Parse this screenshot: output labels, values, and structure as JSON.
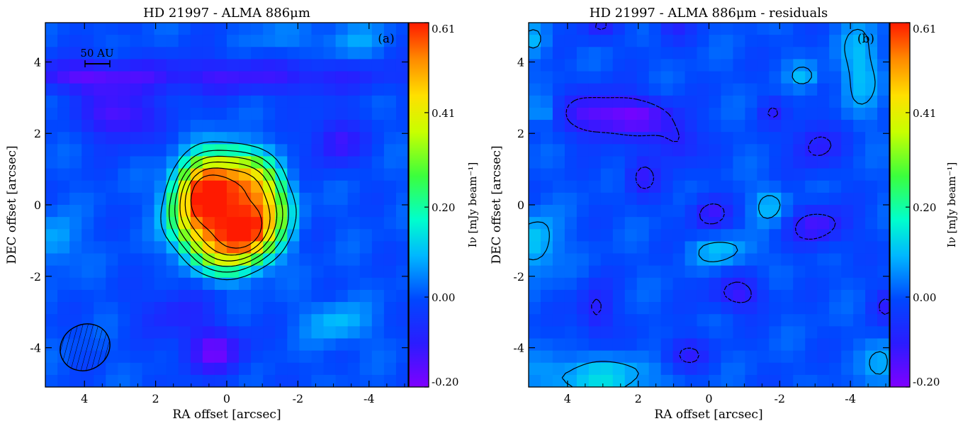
{
  "chart_data": [
    {
      "type": "heatmap",
      "panel_label": "(a)",
      "title": "HD 21997 - ALMA 886μm",
      "xlabel": "RA offset [arcsec]",
      "ylabel": "DEC offset [arcsec]",
      "xlim": [
        5.1,
        -5.1
      ],
      "ylim": [
        -5.1,
        5.1
      ],
      "x_ticks": [
        4,
        2,
        0,
        -2,
        -4
      ],
      "x_tick_labels": [
        "4",
        "2",
        "0",
        "-2",
        "-4"
      ],
      "y_ticks": [
        -4,
        -2,
        0,
        2,
        4
      ],
      "y_tick_labels": [
        "-4",
        "-2",
        "0",
        "2",
        "4"
      ],
      "colorbar": {
        "label": "Iν [mJy beam⁻¹]",
        "range": [
          -0.2,
          0.61
        ],
        "ticks": [
          -0.2,
          0.0,
          0.2,
          0.41,
          0.61
        ],
        "tick_labels": [
          "-0.20",
          "0.00",
          "0.20",
          "0.41",
          "0.61"
        ]
      },
      "scale_bar_label": "50 AU",
      "beam": {
        "center_x": 4.0,
        "center_y": -4.1,
        "major_arcsec": 1.5,
        "minor_arcsec": 1.3
      },
      "components": [
        {
          "type": "ring",
          "center_x": -0.05,
          "center_y": -0.15,
          "radius_x": 1.55,
          "radius_y": 1.6,
          "width": 1.05,
          "peak": 0.58
        },
        {
          "type": "blob",
          "center_x": 0.75,
          "center_y": 0.5,
          "sigma_x": 0.45,
          "sigma_y": 0.55,
          "peak": 0.12
        },
        {
          "type": "blob",
          "center_x": -0.55,
          "center_y": -0.8,
          "sigma_x": 0.4,
          "sigma_y": 0.45,
          "peak": 0.12
        },
        {
          "type": "blob",
          "center_x": 3.0,
          "center_y": 2.5,
          "sigma_x": 0.7,
          "sigma_y": 0.5,
          "peak": -0.16
        },
        {
          "type": "blob",
          "center_x": -3.1,
          "center_y": 1.8,
          "sigma_x": 0.5,
          "sigma_y": 0.5,
          "peak": -0.13
        },
        {
          "type": "blob",
          "center_x": 0.35,
          "center_y": -4.1,
          "sigma_x": 0.6,
          "sigma_y": 0.45,
          "peak": -0.17
        },
        {
          "type": "blob",
          "center_x": 1.5,
          "center_y": -3.0,
          "sigma_x": 0.7,
          "sigma_y": 0.5,
          "peak": -0.08
        },
        {
          "type": "blob",
          "center_x": -0.1,
          "center_y": 3.6,
          "sigma_x": 3.5,
          "sigma_y": 0.35,
          "peak": -0.12
        },
        {
          "type": "blob",
          "center_x": 4.2,
          "center_y": 3.6,
          "sigma_x": 1.0,
          "sigma_y": 0.3,
          "peak": -0.1
        },
        {
          "type": "blob",
          "center_x": -3.1,
          "center_y": -3.3,
          "sigma_x": 0.6,
          "sigma_y": 0.4,
          "peak": 0.1
        },
        {
          "type": "blob",
          "center_x": 4.8,
          "center_y": -1.0,
          "sigma_x": 0.4,
          "sigma_y": 0.5,
          "peak": 0.09
        },
        {
          "type": "blob",
          "center_x": -1.5,
          "center_y": 4.6,
          "sigma_x": 0.5,
          "sigma_y": 0.4,
          "peak": 0.05
        },
        {
          "type": "blob",
          "center_x": -3.5,
          "center_y": 4.6,
          "sigma_x": 0.6,
          "sigma_y": 0.4,
          "peak": 0.07
        }
      ],
      "contours": {
        "levels": [
          0.1,
          0.2,
          0.29,
          0.38,
          0.47,
          0.56
        ],
        "color": "#000000",
        "style": "solid"
      }
    },
    {
      "type": "heatmap",
      "panel_label": "(b)",
      "title": "HD 21997 - ALMA 886μm - residuals",
      "xlabel": "RA offset [arcsec]",
      "ylabel": "DEC offset [arcsec]",
      "xlim": [
        5.1,
        -5.1
      ],
      "ylim": [
        -5.1,
        5.1
      ],
      "x_ticks": [
        4,
        2,
        0,
        -2,
        -4
      ],
      "x_tick_labels": [
        "4",
        "2",
        "0",
        "-2",
        "-4"
      ],
      "y_ticks": [
        -4,
        -2,
        0,
        2,
        4
      ],
      "y_tick_labels": [
        "-4",
        "-2",
        "0",
        "2",
        "4"
      ],
      "colorbar": {
        "label": "Iν [mJy beam⁻¹]",
        "range": [
          -0.2,
          0.61
        ],
        "ticks": [
          -0.2,
          0.0,
          0.2,
          0.41,
          0.61
        ],
        "tick_labels": [
          "-0.20",
          "0.00",
          "0.20",
          "0.41",
          "0.61"
        ]
      },
      "components": [
        {
          "type": "blob",
          "center_x": 3.0,
          "center_y": 2.5,
          "sigma_x": 0.8,
          "sigma_y": 0.45,
          "peak": -0.17
        },
        {
          "type": "blob",
          "center_x": 1.8,
          "center_y": 2.5,
          "sigma_x": 0.6,
          "sigma_y": 0.35,
          "peak": -0.1
        },
        {
          "type": "blob",
          "center_x": 0.9,
          "center_y": 1.8,
          "sigma_x": 0.45,
          "sigma_y": 0.45,
          "peak": -0.11
        },
        {
          "type": "blob",
          "center_x": 1.9,
          "center_y": 0.8,
          "sigma_x": 0.35,
          "sigma_y": 0.4,
          "peak": -0.11
        },
        {
          "type": "blob",
          "center_x": 0.0,
          "center_y": -0.25,
          "sigma_x": 0.4,
          "sigma_y": 0.35,
          "peak": -0.12
        },
        {
          "type": "blob",
          "center_x": -3.1,
          "center_y": -0.6,
          "sigma_x": 0.6,
          "sigma_y": 0.4,
          "peak": -0.13
        },
        {
          "type": "blob",
          "center_x": -3.0,
          "center_y": 1.7,
          "sigma_x": 0.5,
          "sigma_y": 0.5,
          "peak": -0.11
        },
        {
          "type": "blob",
          "center_x": 3.2,
          "center_y": -3.0,
          "sigma_x": 0.35,
          "sigma_y": 0.55,
          "peak": -0.11
        },
        {
          "type": "blob",
          "center_x": -0.8,
          "center_y": -2.5,
          "sigma_x": 0.55,
          "sigma_y": 0.35,
          "peak": -0.12
        },
        {
          "type": "blob",
          "center_x": 0.7,
          "center_y": -4.2,
          "sigma_x": 0.5,
          "sigma_y": 0.35,
          "peak": -0.1
        },
        {
          "type": "blob",
          "center_x": 3.1,
          "center_y": 5.0,
          "sigma_x": 0.35,
          "sigma_y": 0.3,
          "peak": -0.09
        },
        {
          "type": "blob",
          "center_x": 1.0,
          "center_y": 5.0,
          "sigma_x": 0.35,
          "sigma_y": 0.3,
          "peak": -0.08
        },
        {
          "type": "blob",
          "center_x": -5.0,
          "center_y": -2.8,
          "sigma_x": 0.3,
          "sigma_y": 0.35,
          "peak": -0.09
        },
        {
          "type": "blob",
          "center_x": -1.8,
          "center_y": 2.6,
          "sigma_x": 0.25,
          "sigma_y": 0.25,
          "peak": -0.08
        },
        {
          "type": "blob",
          "center_x": -4.3,
          "center_y": 3.9,
          "sigma_x": 0.45,
          "sigma_y": 0.9,
          "peak": 0.1
        },
        {
          "type": "blob",
          "center_x": -2.7,
          "center_y": 3.6,
          "sigma_x": 0.3,
          "sigma_y": 0.25,
          "peak": 0.09
        },
        {
          "type": "blob",
          "center_x": -1.75,
          "center_y": 0.0,
          "sigma_x": 0.35,
          "sigma_y": 0.35,
          "peak": 0.1
        },
        {
          "type": "blob",
          "center_x": -0.4,
          "center_y": -1.3,
          "sigma_x": 0.6,
          "sigma_y": 0.3,
          "peak": 0.1
        },
        {
          "type": "blob",
          "center_x": 4.9,
          "center_y": -1.1,
          "sigma_x": 0.45,
          "sigma_y": 0.6,
          "peak": 0.12
        },
        {
          "type": "blob",
          "center_x": 3.2,
          "center_y": -4.8,
          "sigma_x": 1.3,
          "sigma_y": 0.4,
          "peak": 0.12
        },
        {
          "type": "blob",
          "center_x": -4.9,
          "center_y": -4.5,
          "sigma_x": 0.35,
          "sigma_y": 0.5,
          "peak": 0.09
        },
        {
          "type": "blob",
          "center_x": 4.7,
          "center_y": 2.6,
          "sigma_x": 0.25,
          "sigma_y": 0.25,
          "peak": 0.08
        },
        {
          "type": "blob",
          "center_x": 4.9,
          "center_y": 4.6,
          "sigma_x": 0.3,
          "sigma_y": 0.35,
          "peak": 0.08
        }
      ],
      "contours": {
        "levels": [
          -0.09,
          0.07
        ],
        "negative_style": "dashed",
        "positive_style": "solid",
        "color": "#000000"
      }
    }
  ]
}
